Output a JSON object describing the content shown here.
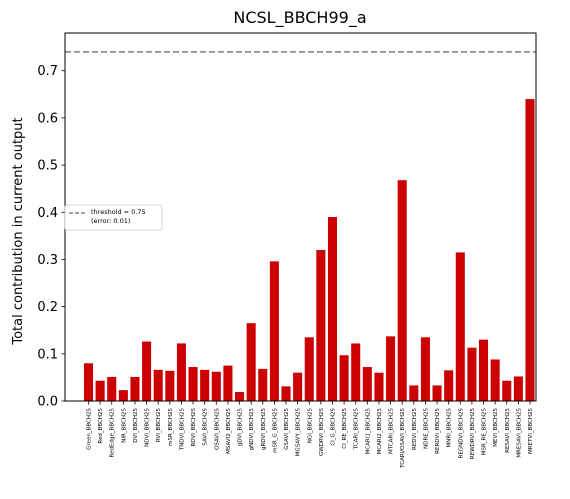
{
  "chart_data": {
    "type": "bar",
    "title": "NCSL_BBCH99_a",
    "xlabel": "",
    "ylabel": "Total contribution in current output",
    "ylim": [
      0,
      0.78
    ],
    "yticks": [
      "0.0",
      "0.1",
      "0.2",
      "0.3",
      "0.4",
      "0.5",
      "0.6",
      "0.7"
    ],
    "grid": false,
    "bar_color": "#cc0000",
    "threshold": {
      "value": 0.74,
      "color": "#808080",
      "style": "dashed",
      "legend_label_line1": "threshold = 0.75",
      "legend_label_line2": "(error: 0.01)",
      "legend_placement": "center-left"
    },
    "categories": [
      "Green_BBCH25",
      "Red_BBCH25",
      "RedEdge_BBCH25",
      "NIR_BBCH25",
      "DVI_BBCH25",
      "NDVI_BBCH25",
      "RVI_BBCH25",
      "mSR_BBCH25",
      "TNDVI_BBCH25",
      "RDVI_BBCH25",
      "SAVI_BBCH25",
      "OSAVI_BBCH25",
      "MSAVI2_BBCH25",
      "gDVI_BBCH25",
      "gNDVI_BBCH25",
      "gRDVI_BBCH25",
      "mSR_G_BBCH25",
      "GSAVI_BBCH25",
      "MGSAVY_BBCH25",
      "NGI_BBCH25",
      "GWDRVI_BBCH25",
      "CI_G_BBCH25",
      "CI_RE_BBCH25",
      "TCARI_BBCH25",
      "MCARI1_BBCH25",
      "MCARI2_BBCH25",
      "MTCARI_BBCH25",
      "TCARI/OSAVI_BBCH25",
      "REDVI_BBCH25",
      "NDRE_BBCH25",
      "RERDVI_BBCH25",
      "MNRI_BBCH25",
      "REGNDVI_BBCH25",
      "REWDRVI_BBCH25",
      "MSR_RE_BBCH25",
      "MEVI_BBCH25",
      "RESAVI_BBCH25",
      "MRESAVI_BBCH25",
      "MRETVI_BBCH25"
    ],
    "values": [
      0.08,
      0.043,
      0.051,
      0.023,
      0.051,
      0.126,
      0.066,
      0.064,
      0.122,
      0.072,
      0.066,
      0.062,
      0.075,
      0.019,
      0.165,
      0.068,
      0.296,
      0.031,
      0.06,
      0.135,
      0.32,
      0.39,
      0.097,
      0.122,
      0.072,
      0.06,
      0.137,
      0.468,
      0.033,
      0.135,
      0.033,
      0.065,
      0.315,
      0.113,
      0.13,
      0.088,
      0.043,
      0.052,
      0.64
    ]
  }
}
